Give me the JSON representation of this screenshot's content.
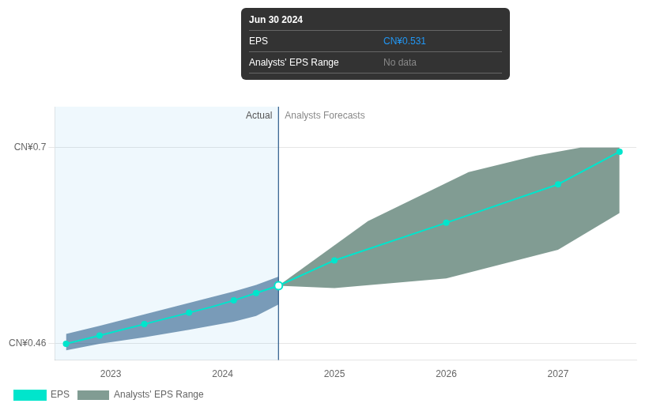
{
  "chart_data": {
    "type": "line",
    "xlim": [
      2022.5,
      2027.7
    ],
    "xticks": [
      2023,
      2024,
      2025,
      2026,
      2027
    ],
    "ylim": [
      0.44,
      0.75
    ],
    "yticks": [
      {
        "value": 0.46,
        "label": "CN¥0.46"
      },
      {
        "value": 0.7,
        "label": "CN¥0.7"
      }
    ],
    "grid": "y",
    "legend": "bottom",
    "series": [
      {
        "name": "EPS",
        "type": "line",
        "color": "#00e5cc",
        "marker": "circle",
        "x": [
          2022.6,
          2022.75,
          2022.9,
          2023.1,
          2023.3,
          2023.5,
          2023.7,
          2023.9,
          2024.1,
          2024.3,
          2024.5,
          2025.0,
          2026.0,
          2027.0,
          2027.55
        ],
        "values": [
          0.46,
          0.465,
          0.47,
          0.477,
          0.484,
          0.491,
          0.498,
          0.505,
          0.513,
          0.522,
          0.531,
          0.562,
          0.608,
          0.655,
          0.695
        ],
        "marked": [
          true,
          false,
          true,
          false,
          true,
          false,
          true,
          false,
          true,
          true,
          true,
          true,
          true,
          true,
          true
        ]
      },
      {
        "type": "band",
        "color": "#1a5080",
        "x": [
          2022.6,
          2022.9,
          2023.3,
          2023.7,
          2024.1,
          2024.3,
          2024.5
        ],
        "upper": [
          0.472,
          0.482,
          0.496,
          0.51,
          0.524,
          0.532,
          0.542
        ],
        "lower": [
          0.452,
          0.46,
          0.468,
          0.477,
          0.487,
          0.494,
          0.508
        ]
      },
      {
        "name": "Analysts' EPS Range",
        "type": "band",
        "color": "#1a4a3a",
        "upper_x": [
          2024.5,
          2025.3,
          2026.2,
          2026.8,
          2027.2,
          2027.55
        ],
        "upper": [
          0.531,
          0.61,
          0.67,
          0.69,
          0.7,
          0.7
        ],
        "lower_x": [
          2024.5,
          2025.0,
          2026.0,
          2027.0,
          2027.55
        ],
        "lower": [
          0.531,
          0.528,
          0.54,
          0.575,
          0.62
        ]
      }
    ],
    "vline": {
      "x": 2024.5,
      "color": "#2a5a8a"
    },
    "highlight": [
      2022.5,
      2024.5
    ],
    "annotations": [
      "Actual",
      "Analysts Forecasts"
    ],
    "tooltip": {
      "title": "Jun 30 2024",
      "rows": [
        {
          "label": "EPS",
          "value": 0.531,
          "value_label": "CN¥0.531",
          "color": "#2196f3"
        },
        {
          "label": "Analysts' EPS Range",
          "value_label": "No data",
          "color": "#888888"
        }
      ]
    }
  }
}
